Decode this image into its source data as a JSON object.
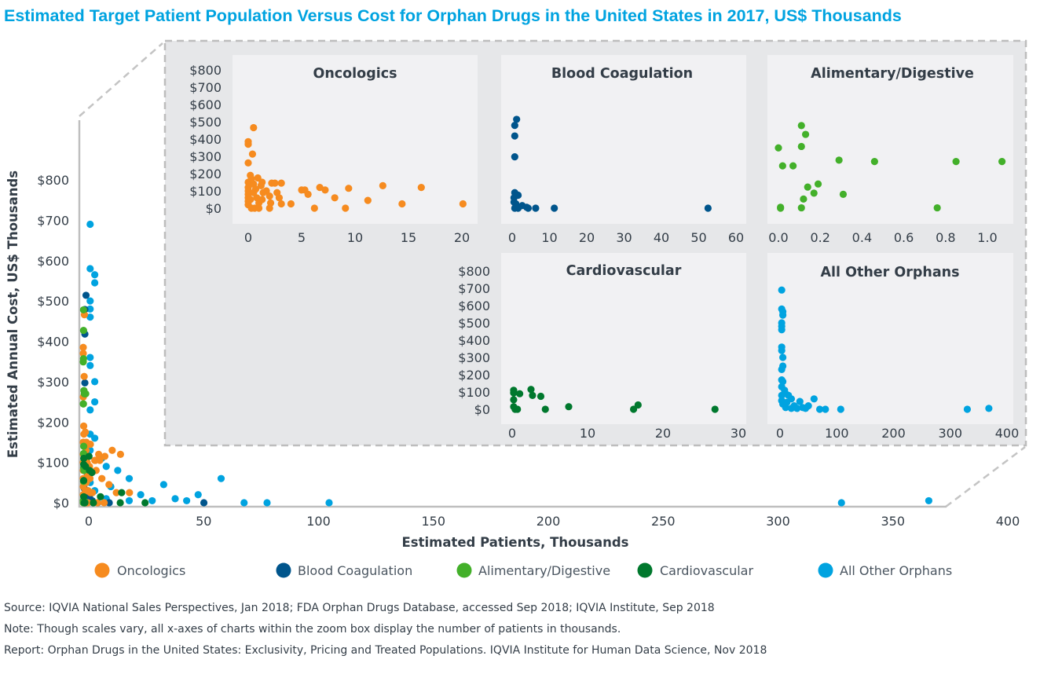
{
  "chart_data": {
    "type": "scatter",
    "title": "Estimated Target Patient Population Versus Cost for Orphan Drugs in the United States in 2017, US$ Thousands",
    "xlabel": "Estimated Patients, Thousands",
    "ylabel": "Estimated Annual Cost, US$ Thousands",
    "xlim": [
      0,
      400
    ],
    "ylim": [
      0,
      800
    ],
    "x_ticks": [
      "0",
      "50",
      "100",
      "150",
      "200",
      "250",
      "300",
      "350",
      "400"
    ],
    "y_ticks": [
      "$0",
      "$100",
      "$200",
      "$300",
      "$400",
      "$500",
      "$600",
      "$700",
      "$800"
    ],
    "grid": false,
    "legend_position": "bottom",
    "series": [
      {
        "name": "Oncologics",
        "color": "#f68b1f",
        "points": [
          [
            0.5,
            466
          ],
          [
            0,
            385
          ],
          [
            0,
            370
          ],
          [
            0.4,
            313
          ],
          [
            0,
            262
          ],
          [
            0.2,
            190
          ],
          [
            0.9,
            175
          ],
          [
            1.3,
            150
          ],
          [
            2.2,
            145
          ],
          [
            2.5,
            145
          ],
          [
            3.1,
            145
          ],
          [
            1.7,
            100
          ],
          [
            2.7,
            90
          ],
          [
            2.9,
            60
          ],
          [
            3.1,
            25
          ],
          [
            4.0,
            25
          ],
          [
            5.0,
            105
          ],
          [
            5.3,
            105
          ],
          [
            5.6,
            80
          ],
          [
            6.7,
            120
          ],
          [
            7.2,
            105
          ],
          [
            8.1,
            60
          ],
          [
            9.4,
            115
          ],
          [
            6.2,
            0
          ],
          [
            9.1,
            0
          ],
          [
            11.2,
            45
          ],
          [
            12.6,
            130
          ],
          [
            14.4,
            25
          ],
          [
            16.2,
            120
          ],
          [
            20.1,
            25
          ],
          [
            2.0,
            0
          ],
          [
            0,
            150
          ],
          [
            0,
            120
          ],
          [
            0,
            100
          ],
          [
            0,
            80
          ],
          [
            0,
            60
          ],
          [
            0,
            40
          ],
          [
            0,
            20
          ],
          [
            0.3,
            0
          ],
          [
            0.5,
            140
          ],
          [
            0.7,
            110
          ],
          [
            0.8,
            60
          ],
          [
            1.0,
            30
          ],
          [
            1.2,
            130
          ],
          [
            1.4,
            90
          ],
          [
            1.3,
            50
          ],
          [
            2.0,
            70
          ],
          [
            2.1,
            30
          ],
          [
            0.6,
            0
          ],
          [
            1.0,
            0
          ],
          [
            0.3,
            170
          ],
          [
            0.5,
            90
          ],
          [
            0.2,
            50
          ]
        ]
      },
      {
        "name": "Blood Coagulation",
        "color": "#00558c",
        "points": [
          [
            1.2,
            514
          ],
          [
            0.7,
            479
          ],
          [
            0.7,
            418
          ],
          [
            0.7,
            297
          ],
          [
            0.7,
            90
          ],
          [
            1.6,
            75
          ],
          [
            0.5,
            60
          ],
          [
            0.5,
            35
          ],
          [
            1.0,
            25
          ],
          [
            2.7,
            15
          ],
          [
            3.9,
            5
          ],
          [
            0.7,
            0
          ],
          [
            1.6,
            0
          ],
          [
            4.3,
            0
          ],
          [
            6.3,
            0
          ],
          [
            11.3,
            0
          ],
          [
            52.5,
            0
          ]
        ]
      },
      {
        "name": "Alimentary/Digestive",
        "color": "#43b02a",
        "points": [
          [
            0.11,
            478
          ],
          [
            0.13,
            427
          ],
          [
            0.11,
            357
          ],
          [
            0.0,
            349
          ],
          [
            0.29,
            278
          ],
          [
            0.46,
            270
          ],
          [
            0.85,
            270
          ],
          [
            1.07,
            270
          ],
          [
            0.02,
            245
          ],
          [
            0.07,
            245
          ],
          [
            0.19,
            140
          ],
          [
            0.14,
            122
          ],
          [
            0.17,
            87
          ],
          [
            0.31,
            80
          ],
          [
            0.12,
            53
          ],
          [
            0.11,
            2
          ],
          [
            0.01,
            5
          ],
          [
            0.01,
            0
          ],
          [
            0.76,
            2
          ]
        ]
      },
      {
        "name": "Cardiovascular",
        "color": "#00782d",
        "points": [
          [
            0.2,
            110
          ],
          [
            0.2,
            95
          ],
          [
            1.0,
            90
          ],
          [
            2.5,
            115
          ],
          [
            2.7,
            80
          ],
          [
            3.8,
            75
          ],
          [
            0.2,
            55
          ],
          [
            0.2,
            15
          ],
          [
            0.4,
            0
          ],
          [
            0.7,
            0
          ],
          [
            4.4,
            0
          ],
          [
            7.5,
            15
          ],
          [
            16.1,
            0
          ],
          [
            16.7,
            25
          ],
          [
            26.9,
            0
          ]
        ]
      },
      {
        "name": "All Other Orphans",
        "color": "#00a3e0",
        "points": [
          [
            3,
            690
          ],
          [
            3,
            580
          ],
          [
            5,
            565
          ],
          [
            5,
            545
          ],
          [
            3,
            500
          ],
          [
            3,
            480
          ],
          [
            3,
            460
          ],
          [
            3,
            360
          ],
          [
            3,
            340
          ],
          [
            5,
            300
          ],
          [
            5,
            250
          ],
          [
            3,
            230
          ],
          [
            3,
            170
          ],
          [
            5,
            160
          ],
          [
            3,
            130
          ],
          [
            8,
            110
          ],
          [
            10,
            90
          ],
          [
            15,
            80
          ],
          [
            20,
            60
          ],
          [
            35,
            45
          ],
          [
            60,
            60
          ],
          [
            50,
            20
          ],
          [
            40,
            10
          ],
          [
            30,
            5
          ],
          [
            20,
            5
          ],
          [
            10,
            10
          ],
          [
            5,
            30
          ],
          [
            3,
            50
          ],
          [
            3,
            80
          ],
          [
            12,
            40
          ],
          [
            25,
            20
          ],
          [
            45,
            5
          ],
          [
            70,
            0
          ],
          [
            80,
            0
          ],
          [
            107,
            0
          ],
          [
            330,
            0
          ],
          [
            368,
            5
          ]
        ]
      }
    ],
    "zoom_panels": [
      {
        "title": "Oncologics",
        "series": "Oncologics",
        "x_ticks": [
          "0",
          "5",
          "10",
          "15",
          "20"
        ],
        "xlim": [
          0,
          20
        ],
        "y_ticks": [
          "$0",
          "$100",
          "$200",
          "$300",
          "$400",
          "$500",
          "$600",
          "$700",
          "$800"
        ],
        "ylim": [
          0,
          800
        ]
      },
      {
        "title": "Blood Coagulation",
        "series": "Blood Coagulation",
        "x_ticks": [
          "0",
          "10",
          "20",
          "30",
          "40",
          "50",
          "60"
        ],
        "xlim": [
          0,
          60
        ],
        "ylim": [
          0,
          800
        ]
      },
      {
        "title": "Alimentary/Digestive",
        "series": "Alimentary/Digestive",
        "x_ticks": [
          "0.0",
          "0.2",
          "0.4",
          "0.6",
          "0.8",
          "1.0"
        ],
        "xlim": [
          0,
          1
        ],
        "ylim": [
          0,
          800
        ]
      },
      {
        "title": "Cardiovascular",
        "series": "Cardiovascular",
        "x_ticks": [
          "0",
          "10",
          "20",
          "30"
        ],
        "xlim": [
          0,
          30
        ],
        "y_ticks": [
          "$0",
          "$100",
          "$200",
          "$300",
          "$400",
          "$500",
          "$600",
          "$700",
          "$800"
        ],
        "ylim": [
          0,
          800
        ]
      },
      {
        "title": "All Other Orphans",
        "series": "All Other Orphans",
        "x_ticks": [
          "0",
          "100",
          "200",
          "300",
          "400"
        ],
        "xlim": [
          0,
          400
        ],
        "ylim": [
          0,
          800
        ]
      }
    ]
  },
  "legend": [
    "Oncologics",
    "Blood Coagulation",
    "Alimentary/Digestive",
    "Cardiovascular",
    "All Other Orphans"
  ],
  "footer": {
    "source": "Source: IQVIA National Sales Perspectives, Jan 2018; FDA Orphan Drugs Database, accessed Sep 2018; IQVIA Institute, Sep 2018",
    "note": "Note: Though scales vary, all x-axes of charts within the zoom box display the number of patients in thousands.",
    "report": "Report: Orphan Drugs in the United States: Exclusivity, Pricing and Treated Populations. IQVIA Institute for Human Data Science, Nov 2018"
  }
}
